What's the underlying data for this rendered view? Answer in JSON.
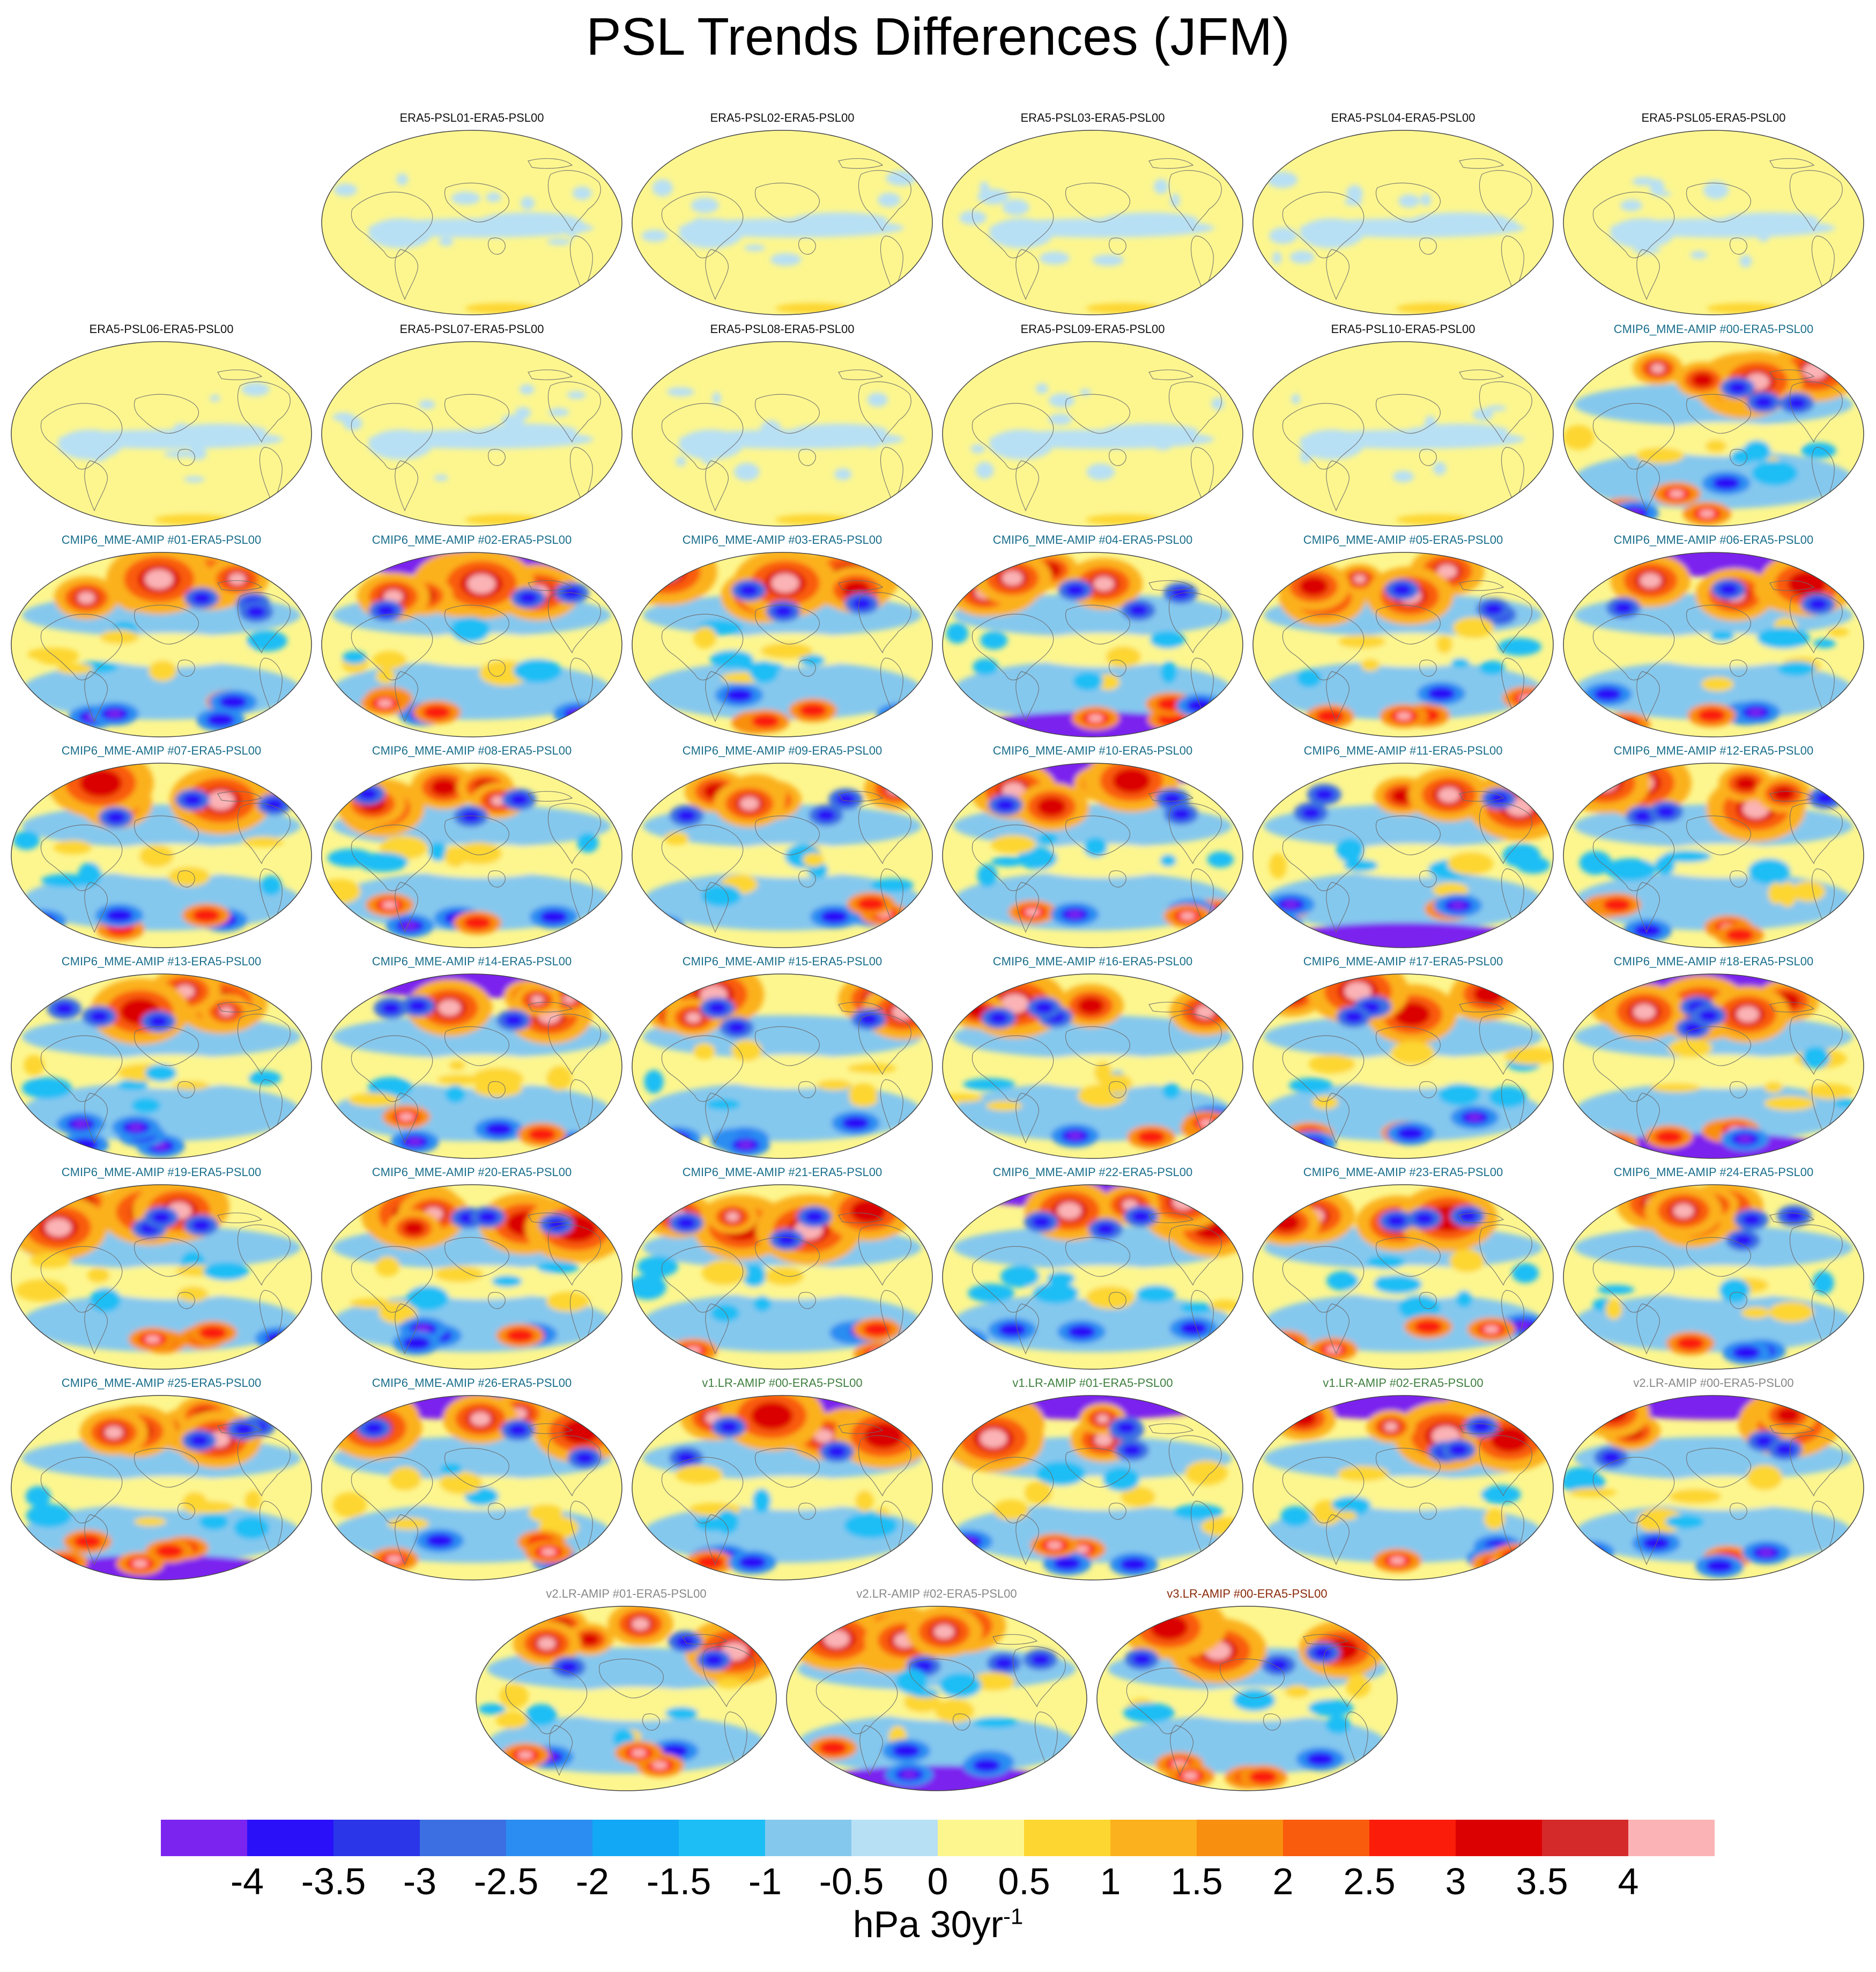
{
  "title": "PSL Trends Differences (JFM)",
  "colorbar": {
    "labels": [
      "-4",
      "-3.5",
      "-3",
      "-2.5",
      "-2",
      "-1.5",
      "-1",
      "-0.5",
      "0",
      "0.5",
      "1",
      "1.5",
      "2",
      "2.5",
      "3",
      "3.5",
      "4"
    ],
    "colors": [
      "#7b24ef",
      "#2a10f8",
      "#2a36e8",
      "#3b6fe2",
      "#2b8df2",
      "#12a8f5",
      "#1dbef5",
      "#85c8ee",
      "#b8e0f4",
      "#fdf68f",
      "#fdd632",
      "#fbb11d",
      "#f98f0f",
      "#f95c0d",
      "#fb1d09",
      "#db0103",
      "#d42a2a",
      "#fbb3b5"
    ],
    "units_base": "hPa 30yr",
    "units_exp": "-1"
  },
  "title_colors": {
    "era5": "#111111",
    "cmip6": "#1b6f8c",
    "v1": "#3f7f3f",
    "v2": "#888888",
    "v3": "#8a2a0a"
  },
  "panels": [
    {
      "title": "ERA5-PSL01-ERA5-PSL00",
      "group": "era5"
    },
    {
      "title": "ERA5-PSL02-ERA5-PSL00",
      "group": "era5"
    },
    {
      "title": "ERA5-PSL03-ERA5-PSL00",
      "group": "era5"
    },
    {
      "title": "ERA5-PSL04-ERA5-PSL00",
      "group": "era5"
    },
    {
      "title": "ERA5-PSL05-ERA5-PSL00",
      "group": "era5"
    },
    {
      "title": "ERA5-PSL06-ERA5-PSL00",
      "group": "era5"
    },
    {
      "title": "ERA5-PSL07-ERA5-PSL00",
      "group": "era5"
    },
    {
      "title": "ERA5-PSL08-ERA5-PSL00",
      "group": "era5"
    },
    {
      "title": "ERA5-PSL09-ERA5-PSL00",
      "group": "era5"
    },
    {
      "title": "ERA5-PSL10-ERA5-PSL00",
      "group": "era5"
    },
    {
      "title": "CMIP6_MME-AMIP  #00-ERA5-PSL00",
      "group": "cmip6"
    },
    {
      "title": "CMIP6_MME-AMIP  #01-ERA5-PSL00",
      "group": "cmip6"
    },
    {
      "title": "CMIP6_MME-AMIP  #02-ERA5-PSL00",
      "group": "cmip6"
    },
    {
      "title": "CMIP6_MME-AMIP  #03-ERA5-PSL00",
      "group": "cmip6"
    },
    {
      "title": "CMIP6_MME-AMIP  #04-ERA5-PSL00",
      "group": "cmip6"
    },
    {
      "title": "CMIP6_MME-AMIP  #05-ERA5-PSL00",
      "group": "cmip6"
    },
    {
      "title": "CMIP6_MME-AMIP  #06-ERA5-PSL00",
      "group": "cmip6"
    },
    {
      "title": "CMIP6_MME-AMIP  #07-ERA5-PSL00",
      "group": "cmip6"
    },
    {
      "title": "CMIP6_MME-AMIP  #08-ERA5-PSL00",
      "group": "cmip6"
    },
    {
      "title": "CMIP6_MME-AMIP  #09-ERA5-PSL00",
      "group": "cmip6"
    },
    {
      "title": "CMIP6_MME-AMIP  #10-ERA5-PSL00",
      "group": "cmip6"
    },
    {
      "title": "CMIP6_MME-AMIP  #11-ERA5-PSL00",
      "group": "cmip6"
    },
    {
      "title": "CMIP6_MME-AMIP  #12-ERA5-PSL00",
      "group": "cmip6"
    },
    {
      "title": "CMIP6_MME-AMIP  #13-ERA5-PSL00",
      "group": "cmip6"
    },
    {
      "title": "CMIP6_MME-AMIP  #14-ERA5-PSL00",
      "group": "cmip6"
    },
    {
      "title": "CMIP6_MME-AMIP  #15-ERA5-PSL00",
      "group": "cmip6"
    },
    {
      "title": "CMIP6_MME-AMIP  #16-ERA5-PSL00",
      "group": "cmip6"
    },
    {
      "title": "CMIP6_MME-AMIP  #17-ERA5-PSL00",
      "group": "cmip6"
    },
    {
      "title": "CMIP6_MME-AMIP  #18-ERA5-PSL00",
      "group": "cmip6"
    },
    {
      "title": "CMIP6_MME-AMIP  #19-ERA5-PSL00",
      "group": "cmip6"
    },
    {
      "title": "CMIP6_MME-AMIP  #20-ERA5-PSL00",
      "group": "cmip6"
    },
    {
      "title": "CMIP6_MME-AMIP  #21-ERA5-PSL00",
      "group": "cmip6"
    },
    {
      "title": "CMIP6_MME-AMIP  #22-ERA5-PSL00",
      "group": "cmip6"
    },
    {
      "title": "CMIP6_MME-AMIP  #23-ERA5-PSL00",
      "group": "cmip6"
    },
    {
      "title": "CMIP6_MME-AMIP  #24-ERA5-PSL00",
      "group": "cmip6"
    },
    {
      "title": "CMIP6_MME-AMIP  #25-ERA5-PSL00",
      "group": "cmip6"
    },
    {
      "title": "CMIP6_MME-AMIP  #26-ERA5-PSL00",
      "group": "cmip6"
    },
    {
      "title": "v1.LR-AMIP  #00-ERA5-PSL00",
      "group": "v1"
    },
    {
      "title": "v1.LR-AMIP  #01-ERA5-PSL00",
      "group": "v1"
    },
    {
      "title": "v1.LR-AMIP  #02-ERA5-PSL00",
      "group": "v1"
    },
    {
      "title": "v2.LR-AMIP  #00-ERA5-PSL00",
      "group": "v2"
    },
    {
      "title": "v2.LR-AMIP  #01-ERA5-PSL00",
      "group": "v2"
    },
    {
      "title": "v2.LR-AMIP  #02-ERA5-PSL00",
      "group": "v2"
    },
    {
      "title": "v3.LR-AMIP  #00-ERA5-PSL00",
      "group": "v3"
    }
  ]
}
